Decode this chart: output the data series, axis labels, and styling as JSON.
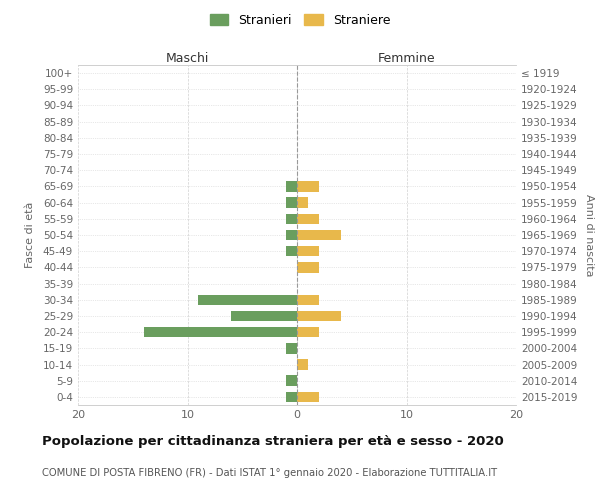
{
  "age_groups": [
    "100+",
    "95-99",
    "90-94",
    "85-89",
    "80-84",
    "75-79",
    "70-74",
    "65-69",
    "60-64",
    "55-59",
    "50-54",
    "45-49",
    "40-44",
    "35-39",
    "30-34",
    "25-29",
    "20-24",
    "15-19",
    "10-14",
    "5-9",
    "0-4"
  ],
  "birth_years": [
    "≤ 1919",
    "1920-1924",
    "1925-1929",
    "1930-1934",
    "1935-1939",
    "1940-1944",
    "1945-1949",
    "1950-1954",
    "1955-1959",
    "1960-1964",
    "1965-1969",
    "1970-1974",
    "1975-1979",
    "1980-1984",
    "1985-1989",
    "1990-1994",
    "1995-1999",
    "2000-2004",
    "2005-2009",
    "2010-2014",
    "2015-2019"
  ],
  "stranieri": [
    0,
    0,
    0,
    0,
    0,
    0,
    0,
    1,
    1,
    1,
    1,
    1,
    0,
    0,
    9,
    6,
    14,
    1,
    0,
    1,
    1
  ],
  "straniere": [
    0,
    0,
    0,
    0,
    0,
    0,
    0,
    2,
    1,
    2,
    4,
    2,
    2,
    0,
    2,
    4,
    2,
    0,
    1,
    0,
    2
  ],
  "color_stranieri": "#6a9e5e",
  "color_straniere": "#e8b84b",
  "title": "Popolazione per cittadinanza straniera per età e sesso - 2020",
  "subtitle": "COMUNE DI POSTA FIBRENO (FR) - Dati ISTAT 1° gennaio 2020 - Elaborazione TUTTITALIA.IT",
  "ylabel_left": "Fasce di età",
  "ylabel_right": "Anni di nascita",
  "xlabel_left": "Maschi",
  "xlabel_right": "Femmine",
  "legend_stranieri": "Stranieri",
  "legend_straniere": "Straniere",
  "xlim": 20,
  "background_color": "#ffffff",
  "grid_color": "#cccccc"
}
